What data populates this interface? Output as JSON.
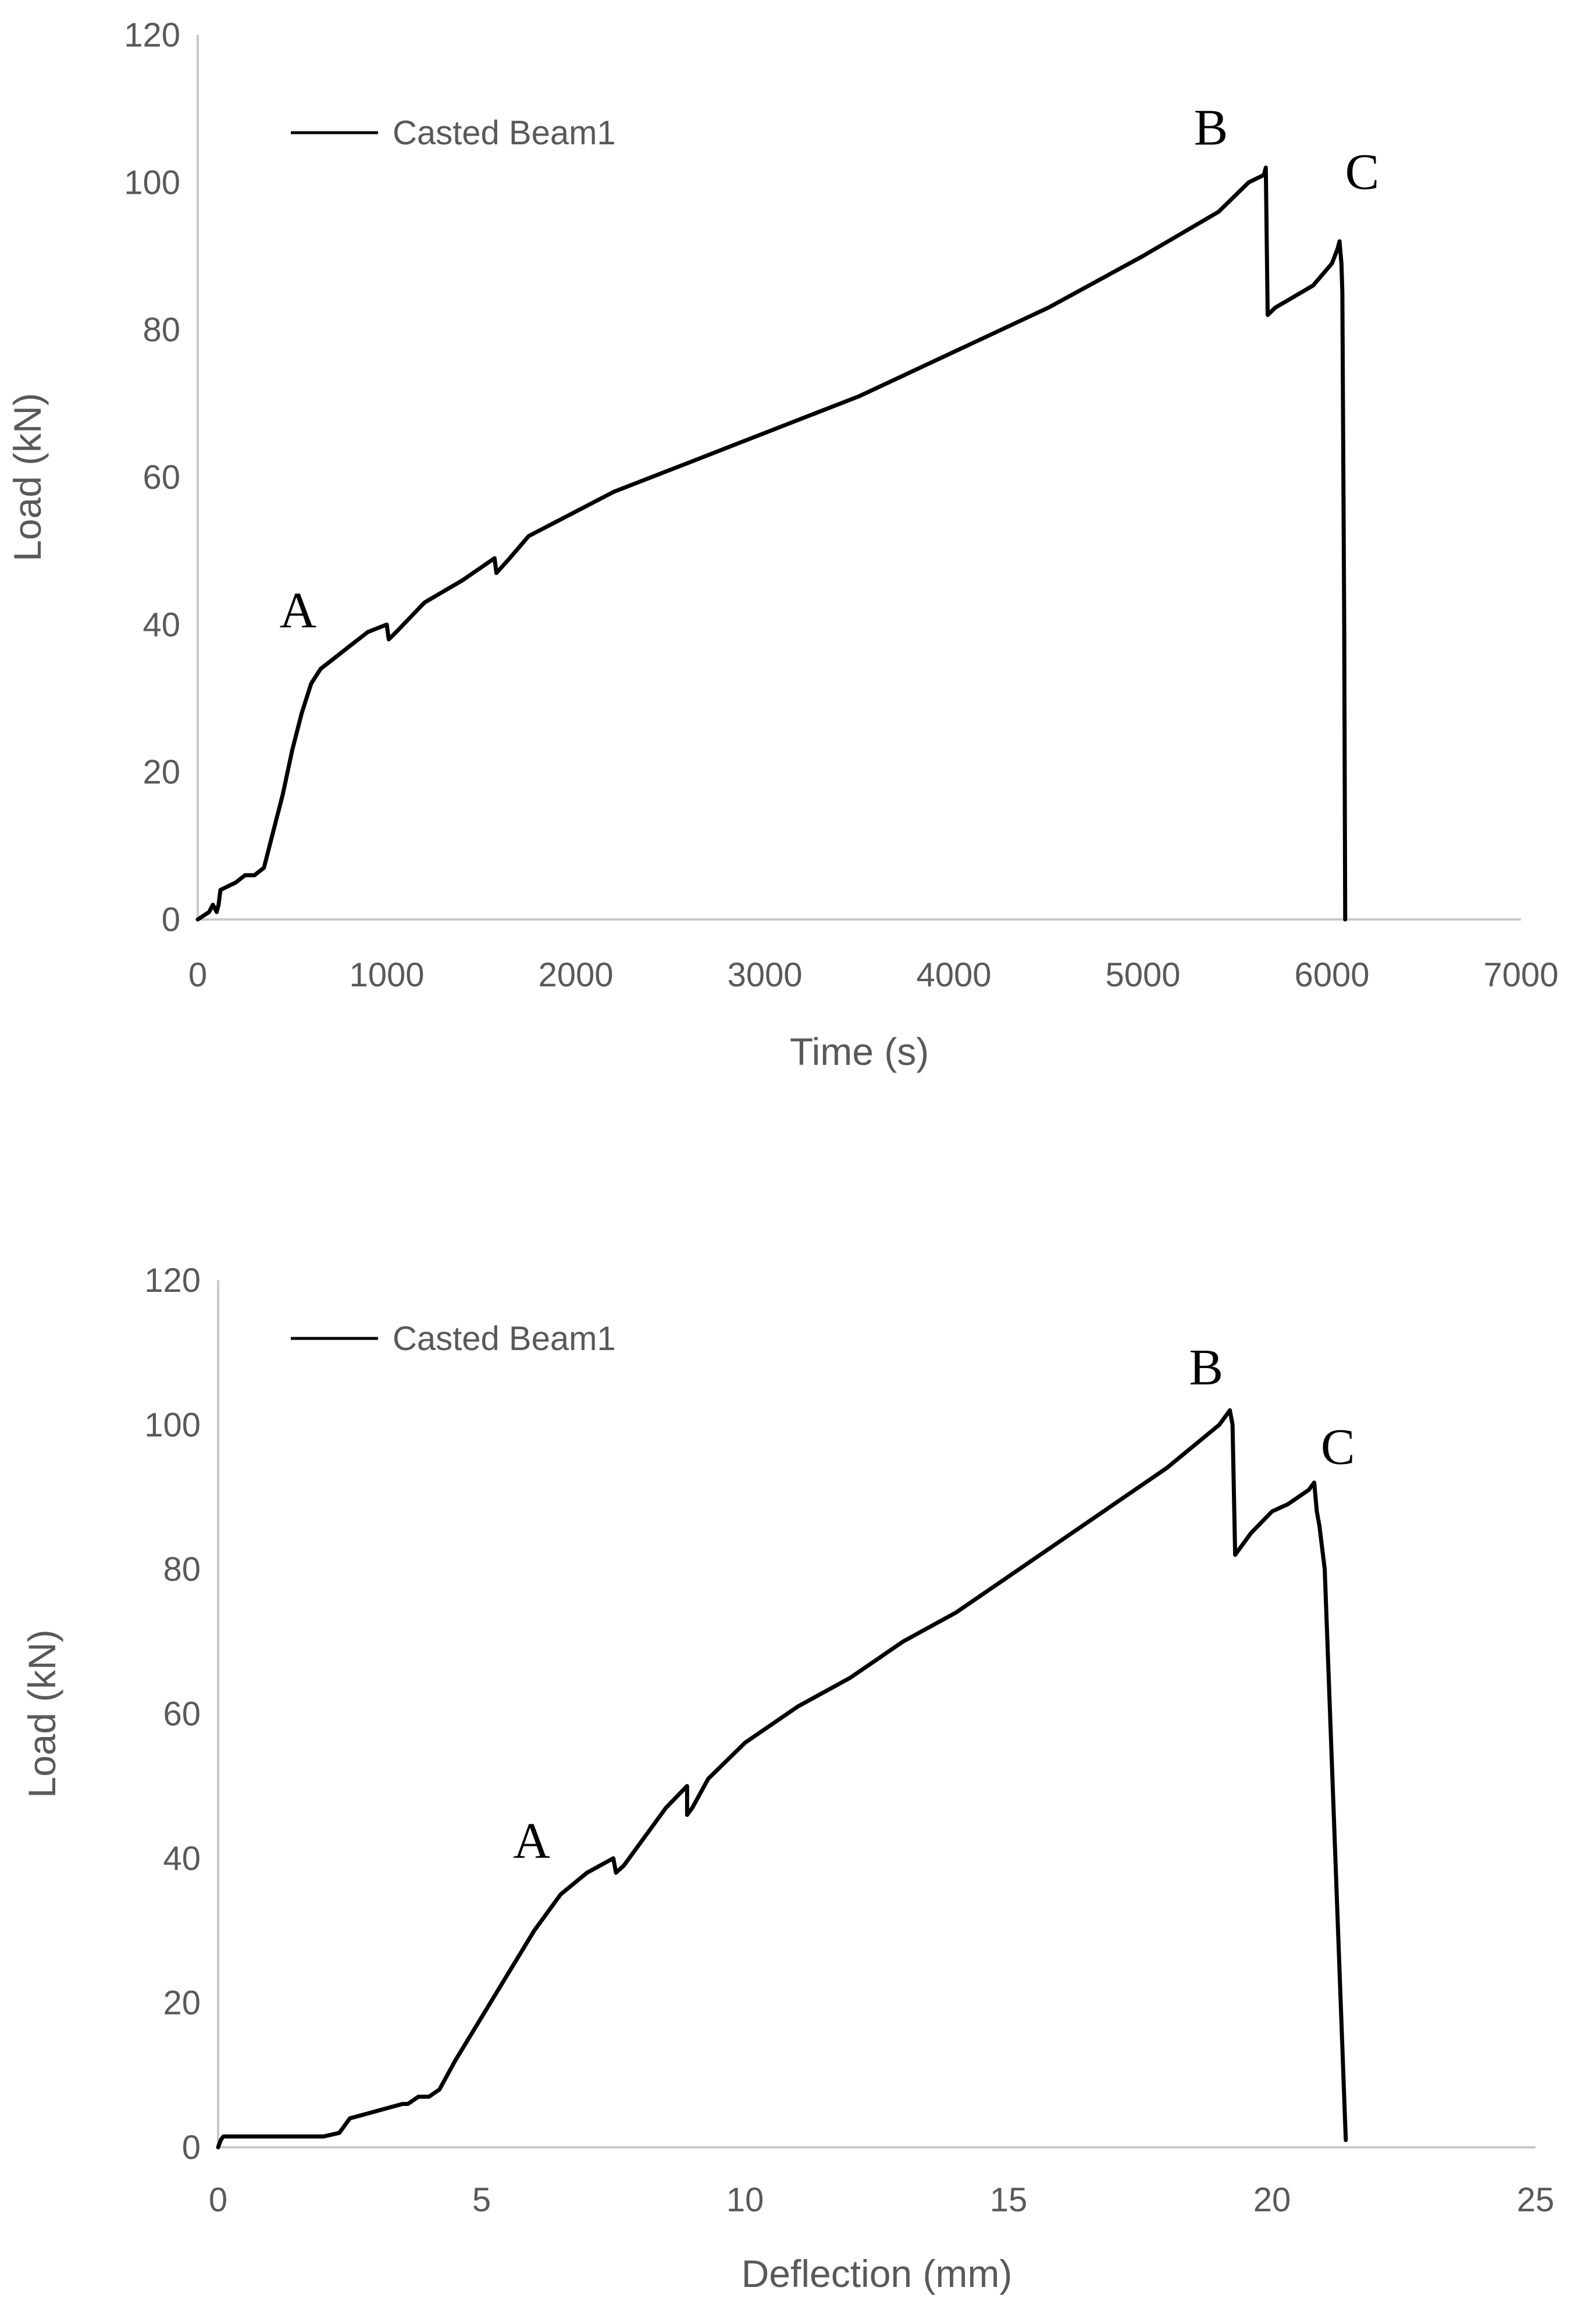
{
  "chart_data": [
    {
      "type": "line",
      "xlabel": "Time (s)",
      "ylabel": "Load (kN)",
      "xlim": [
        0,
        7000
      ],
      "ylim": [
        0,
        120
      ],
      "xticks": [
        "0",
        "1000",
        "2000",
        "3000",
        "4000",
        "5000",
        "6000",
        "7000"
      ],
      "yticks": [
        "0",
        "20",
        "40",
        "60",
        "80",
        "100",
        "120"
      ],
      "grid": false,
      "legend_position": "top-left",
      "series": [
        {
          "name": "Casted Beam1",
          "color": "#000000",
          "x": [
            0,
            60,
            80,
            100,
            110,
            120,
            200,
            250,
            300,
            350,
            400,
            450,
            500,
            550,
            600,
            650,
            700,
            750,
            800,
            900,
            1000,
            1010,
            1050,
            1200,
            1400,
            1570,
            1580,
            1650,
            1750,
            1900,
            2200,
            2600,
            3000,
            3500,
            4000,
            4500,
            5000,
            5400,
            5560,
            5640,
            5650,
            5660,
            5700,
            5900,
            6000,
            6030,
            6040,
            6050,
            6055,
            6065,
            6070
          ],
          "y": [
            0,
            1,
            2,
            1,
            2,
            4,
            5,
            6,
            6,
            7,
            12,
            17,
            23,
            28,
            32,
            34,
            35,
            36,
            37,
            39,
            40,
            38,
            39,
            43,
            46,
            49,
            47,
            49,
            52,
            54,
            58,
            62,
            66,
            71,
            77,
            83,
            90,
            96,
            100,
            101,
            102,
            82,
            83,
            86,
            89,
            91,
            92,
            89,
            85,
            40,
            0
          ]
        }
      ],
      "annotations": [
        {
          "label": "A",
          "x": 530,
          "y": 42
        },
        {
          "label": "B",
          "x": 5360,
          "y": 107.5
        },
        {
          "label": "C",
          "x": 6160,
          "y": 101.5
        }
      ]
    },
    {
      "type": "line",
      "xlabel": "Deflection (mm)",
      "ylabel": "Load (kN)",
      "xlim": [
        0,
        25
      ],
      "ylim": [
        0,
        120
      ],
      "xticks": [
        "0",
        "5",
        "10",
        "15",
        "20",
        "25"
      ],
      "yticks": [
        "0",
        "20",
        "40",
        "60",
        "80",
        "100",
        "120"
      ],
      "grid": false,
      "legend_position": "top-left",
      "series": [
        {
          "name": "Casted Beam1",
          "color": "#000000",
          "x": [
            0,
            0.05,
            0.1,
            0.3,
            1.0,
            2.0,
            2.3,
            2.5,
            3.0,
            3.5,
            3.6,
            3.8,
            4.0,
            4.2,
            4.5,
            5.0,
            5.5,
            6.0,
            6.5,
            7.0,
            7.5,
            7.55,
            7.7,
            8.0,
            8.5,
            8.9,
            8.9,
            9.0,
            9.3,
            10.0,
            11.0,
            12.0,
            13.0,
            14.0,
            15.0,
            16.0,
            17.0,
            18.0,
            18.5,
            19.0,
            19.1,
            19.2,
            19.25,
            19.3,
            19.4,
            19.6,
            20.0,
            20.3,
            20.5,
            20.7,
            20.8,
            20.85,
            20.9,
            21.0,
            21.4
          ],
          "y": [
            0,
            1,
            1.5,
            1.5,
            1.5,
            1.5,
            2,
            4,
            5,
            6,
            6,
            7,
            7,
            8,
            12,
            18,
            24,
            30,
            35,
            38,
            40,
            38,
            39,
            42,
            47,
            50,
            46,
            47,
            51,
            56,
            61,
            65,
            70,
            74,
            79,
            84,
            89,
            94,
            97,
            100,
            101,
            102,
            100,
            82,
            83,
            85,
            88,
            89,
            90,
            91,
            92,
            88,
            86,
            80,
            1
          ]
        }
      ],
      "annotations": [
        {
          "label": "A",
          "x": 5.95,
          "y": 42.5
        },
        {
          "label": "B",
          "x": 18.75,
          "y": 108
        },
        {
          "label": "C",
          "x": 21.25,
          "y": 97
        }
      ]
    }
  ]
}
